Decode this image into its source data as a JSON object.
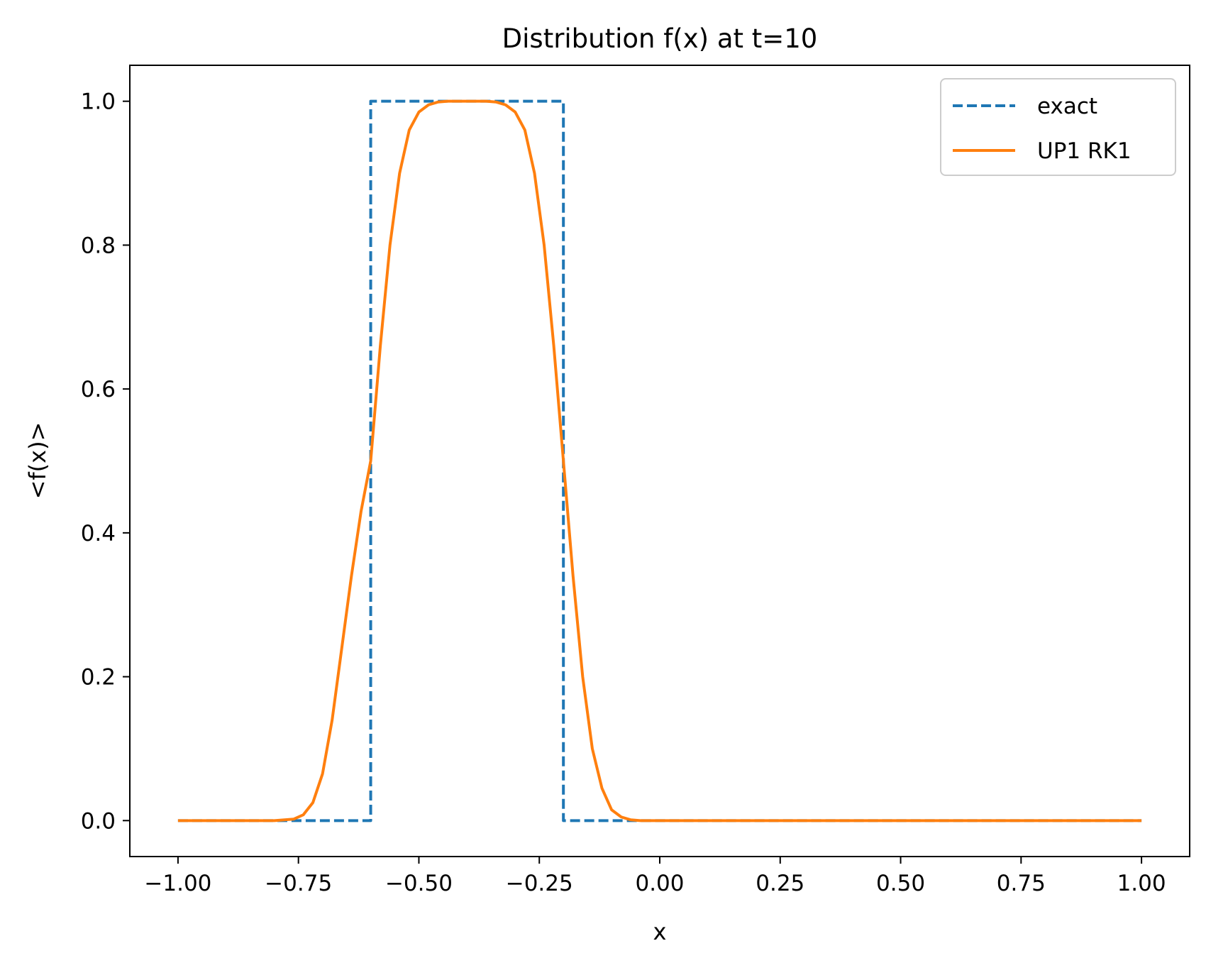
{
  "chart_data": {
    "type": "line",
    "title": "Distribution f(x) at t=10",
    "xlabel": "x",
    "ylabel": "<f(x)>",
    "xlim": [
      -1.1,
      1.1
    ],
    "ylim": [
      -0.05,
      1.05
    ],
    "x_ticks": [
      -1.0,
      -0.75,
      -0.5,
      -0.25,
      0.0,
      0.25,
      0.5,
      0.75,
      1.0
    ],
    "x_tick_labels": [
      "−1.00",
      "−0.75",
      "−0.50",
      "−0.25",
      "0.00",
      "0.25",
      "0.50",
      "0.75",
      "1.00"
    ],
    "y_ticks": [
      0.0,
      0.2,
      0.4,
      0.6,
      0.8,
      1.0
    ],
    "y_tick_labels": [
      "0.0",
      "0.2",
      "0.4",
      "0.6",
      "0.8",
      "1.0"
    ],
    "grid": false,
    "legend_position": "upper right",
    "series": [
      {
        "name": "exact",
        "color": "#1f77b4",
        "style": "dashed",
        "x": [
          -1.0,
          -0.6,
          -0.6,
          -0.2,
          -0.2,
          1.0
        ],
        "y": [
          0.0,
          0.0,
          1.0,
          1.0,
          0.0,
          0.0
        ]
      },
      {
        "name": "UP1 RK1",
        "color": "#ff7f0e",
        "style": "solid",
        "x": [
          -1.0,
          -0.9,
          -0.8,
          -0.76,
          -0.74,
          -0.72,
          -0.7,
          -0.68,
          -0.66,
          -0.64,
          -0.62,
          -0.6,
          -0.58,
          -0.56,
          -0.54,
          -0.52,
          -0.5,
          -0.48,
          -0.46,
          -0.44,
          -0.4,
          -0.36,
          -0.34,
          -0.32,
          -0.3,
          -0.28,
          -0.26,
          -0.24,
          -0.22,
          -0.2,
          -0.18,
          -0.16,
          -0.14,
          -0.12,
          -0.1,
          -0.08,
          -0.06,
          -0.04,
          0.0,
          0.5,
          1.0
        ],
        "y": [
          0.0,
          0.0,
          0.0,
          0.002,
          0.008,
          0.025,
          0.065,
          0.14,
          0.24,
          0.34,
          0.43,
          0.5,
          0.66,
          0.8,
          0.9,
          0.96,
          0.985,
          0.995,
          0.999,
          1.0,
          1.0,
          1.0,
          0.999,
          0.995,
          0.985,
          0.96,
          0.9,
          0.8,
          0.66,
          0.5,
          0.34,
          0.2,
          0.1,
          0.045,
          0.015,
          0.005,
          0.001,
          0.0,
          0.0,
          0.0,
          0.0
        ]
      }
    ]
  }
}
